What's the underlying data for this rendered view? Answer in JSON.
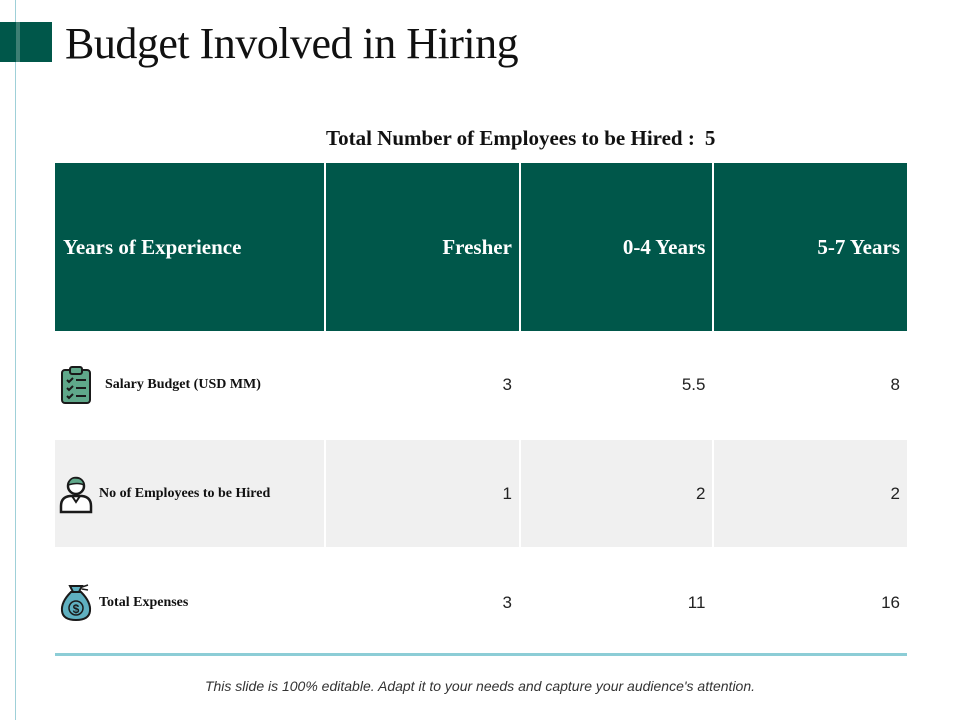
{
  "slide": {
    "title": "Budget Involved in Hiring",
    "total_employees_label": "Total Number of Employees to be Hired :",
    "total_employees_value": "5",
    "footer": "This slide is 100% editable. Adapt it to your needs and capture your audience's attention."
  },
  "table": {
    "headers": [
      "Years of Experience",
      "Fresher",
      "0-4 Years",
      "5-7 Years"
    ],
    "rows": [
      {
        "icon": "clipboard-checklist-icon",
        "label": "Salary Budget (USD MM)",
        "values": [
          "3",
          "5.5",
          "8"
        ]
      },
      {
        "icon": "employee-person-icon",
        "label": "No of Employees to be Hired",
        "values": [
          "1",
          "2",
          "2"
        ]
      },
      {
        "icon": "money-bag-icon",
        "label": "Total Expenses",
        "values": [
          "3",
          "11",
          "16"
        ]
      }
    ]
  },
  "colors": {
    "header_bg": "#00574a",
    "accent_line": "#8ccdd6",
    "alt_row_bg": "#f0f0f0"
  }
}
